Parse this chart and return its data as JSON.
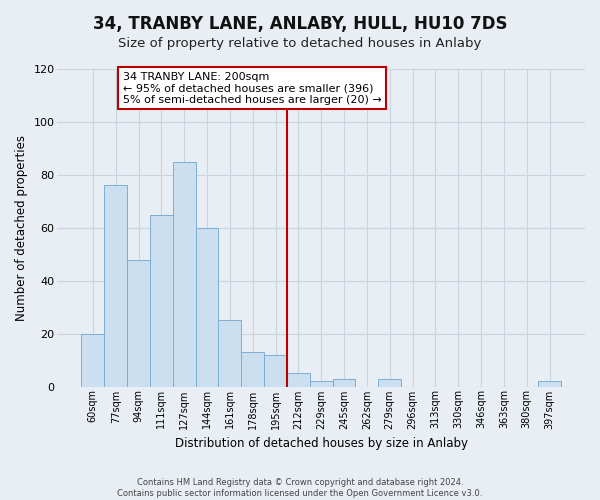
{
  "title": "34, TRANBY LANE, ANLABY, HULL, HU10 7DS",
  "subtitle": "Size of property relative to detached houses in Anlaby",
  "xlabel": "Distribution of detached houses by size in Anlaby",
  "ylabel": "Number of detached properties",
  "bar_labels": [
    "60sqm",
    "77sqm",
    "94sqm",
    "111sqm",
    "127sqm",
    "144sqm",
    "161sqm",
    "178sqm",
    "195sqm",
    "212sqm",
    "229sqm",
    "245sqm",
    "262sqm",
    "279sqm",
    "296sqm",
    "313sqm",
    "330sqm",
    "346sqm",
    "363sqm",
    "380sqm",
    "397sqm"
  ],
  "bar_heights": [
    20,
    76,
    48,
    65,
    85,
    60,
    25,
    13,
    12,
    5,
    2,
    3,
    0,
    3,
    0,
    0,
    0,
    0,
    0,
    0,
    2
  ],
  "bar_color": "#ccdff0",
  "bar_edge_color": "#7bafd4",
  "vline_x": 8.5,
  "vline_color": "#bb0000",
  "annotation_text": "34 TRANBY LANE: 200sqm\n← 95% of detached houses are smaller (396)\n5% of semi-detached houses are larger (20) →",
  "annotation_box_color": "#ffffff",
  "annotation_box_edge": "#bb0000",
  "ylim": [
    0,
    120
  ],
  "yticks": [
    0,
    20,
    40,
    60,
    80,
    100,
    120
  ],
  "footer_line1": "Contains HM Land Registry data © Crown copyright and database right 2024.",
  "footer_line2": "Contains public sector information licensed under the Open Government Licence v3.0.",
  "bg_color": "#e8eef4",
  "plot_bg_color": "#e8eef4",
  "grid_color": "#c8d4de",
  "title_fontsize": 12,
  "subtitle_fontsize": 9.5
}
